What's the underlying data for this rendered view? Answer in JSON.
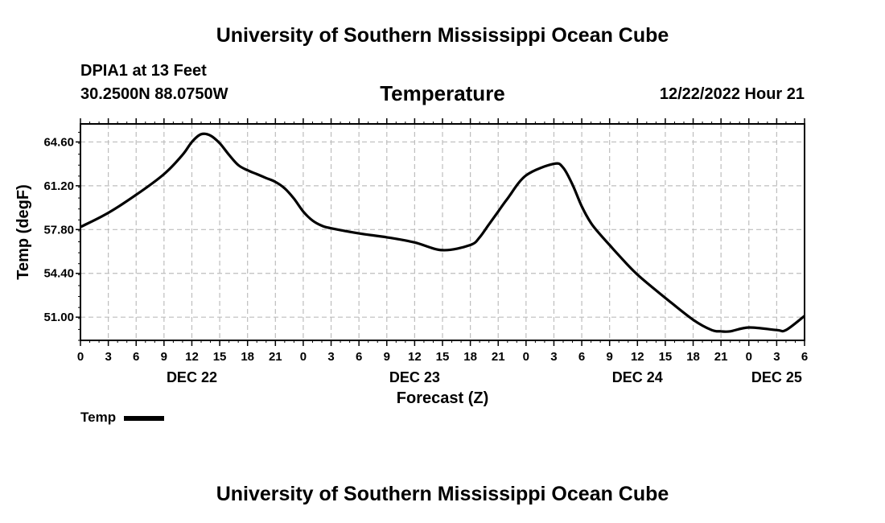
{
  "page_title": "University of Southern Mississippi Ocean Cube",
  "footer_title": "University of Southern Mississippi Ocean Cube",
  "station": "DPIA1 at 13 Feet",
  "location": "30.2500N  88.0750W",
  "timestamp": "12/22/2022 Hour 21",
  "legend_label": "Temp",
  "chart_data": {
    "type": "line",
    "title": "Temperature",
    "xlabel": "Forecast (Z)",
    "ylabel": "Temp (degF)",
    "xlim": [
      0,
      78
    ],
    "ylim": [
      49.2,
      66.0
    ],
    "yticks": [
      51.0,
      54.4,
      57.8,
      61.2,
      64.6
    ],
    "ytick_labels": [
      "51.00",
      "54.40",
      "57.80",
      "61.20",
      "64.60"
    ],
    "xtick_labels": [
      "0",
      "3",
      "6",
      "9",
      "12",
      "15",
      "18",
      "21",
      "0",
      "3",
      "6",
      "9",
      "12",
      "15",
      "18",
      "21",
      "0",
      "3",
      "6",
      "9",
      "12",
      "15",
      "18",
      "21",
      "0",
      "3",
      "6"
    ],
    "date_labels": [
      {
        "label": "DEC 22",
        "x": 12
      },
      {
        "label": "DEC 23",
        "x": 36
      },
      {
        "label": "DEC 24",
        "x": 60
      },
      {
        "label": "DEC 25",
        "x": 75
      }
    ],
    "series": [
      {
        "name": "Temp",
        "color": "#000000",
        "x": [
          0,
          3,
          6,
          9,
          11,
          12,
          13,
          14,
          15,
          16,
          17,
          18,
          19,
          20,
          21,
          22,
          23,
          24,
          25,
          26,
          27,
          30,
          33,
          36,
          39,
          42,
          43,
          44,
          45,
          46,
          48,
          51,
          52,
          53,
          54,
          55,
          56,
          57,
          58,
          60,
          63,
          66,
          68,
          69,
          70,
          72,
          75,
          76,
          78
        ],
        "y": [
          58.0,
          59.1,
          60.5,
          62.1,
          63.6,
          64.6,
          65.2,
          65.1,
          64.5,
          63.6,
          62.8,
          62.4,
          62.1,
          61.8,
          61.5,
          61.0,
          60.2,
          59.2,
          58.5,
          58.1,
          57.9,
          57.5,
          57.2,
          56.8,
          56.2,
          56.6,
          57.2,
          58.2,
          59.2,
          60.2,
          62.0,
          62.9,
          62.6,
          61.3,
          59.6,
          58.3,
          57.4,
          56.6,
          55.8,
          54.3,
          52.5,
          50.8,
          50.0,
          49.9,
          49.9,
          50.2,
          50.0,
          50.0,
          51.1
        ]
      }
    ]
  }
}
